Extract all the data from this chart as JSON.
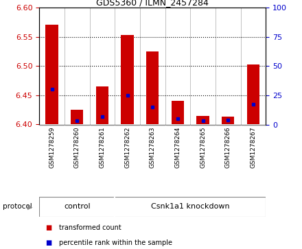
{
  "title": "GDS5360 / ILMN_2457284",
  "samples": [
    "GSM1278259",
    "GSM1278260",
    "GSM1278261",
    "GSM1278262",
    "GSM1278263",
    "GSM1278264",
    "GSM1278265",
    "GSM1278266",
    "GSM1278267"
  ],
  "transformed_counts": [
    6.57,
    6.425,
    6.465,
    6.553,
    6.525,
    6.44,
    6.415,
    6.413,
    6.503
  ],
  "percentile_ranks": [
    30,
    3,
    7,
    25,
    15,
    5,
    3,
    4,
    17
  ],
  "ylim_left": [
    6.4,
    6.6
  ],
  "ylim_right": [
    0,
    100
  ],
  "yticks_left": [
    6.4,
    6.45,
    6.5,
    6.55,
    6.6
  ],
  "yticks_right": [
    0,
    25,
    50,
    75,
    100
  ],
  "control_count": 3,
  "knockdown_count": 6,
  "group_labels": [
    "control",
    "Csnk1a1 knockdown"
  ],
  "group_color": "#90ee90",
  "bar_color_red": "#cc0000",
  "bar_color_blue": "#0000cc",
  "bar_width": 0.5,
  "protocol_label": "protocol",
  "legend_items": [
    {
      "label": "transformed count",
      "color": "#cc0000"
    },
    {
      "label": "percentile rank within the sample",
      "color": "#0000cc"
    }
  ],
  "grid_color": "black",
  "xtick_bg_color": "#d8d8d8",
  "plot_bg_color": "white",
  "left_tick_color": "#cc0000",
  "right_tick_color": "#0000cc"
}
